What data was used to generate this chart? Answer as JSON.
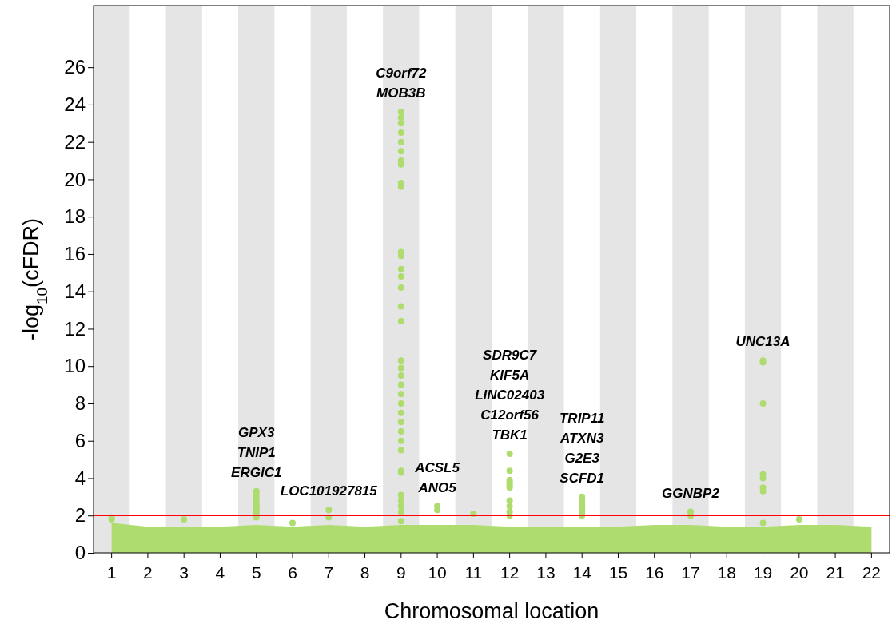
{
  "chart_data": {
    "type": "scatter",
    "xlabel": "Chromosomal location",
    "ylabel": "-log$_{10}$(cFDR)",
    "categories": [
      "1",
      "2",
      "3",
      "4",
      "5",
      "6",
      "7",
      "8",
      "9",
      "10",
      "11",
      "12",
      "13",
      "14",
      "15",
      "16",
      "17",
      "18",
      "19",
      "20",
      "21",
      "22"
    ],
    "ylim": [
      0,
      29.3
    ],
    "yticks": [
      0,
      2,
      4,
      6,
      8,
      10,
      12,
      14,
      16,
      18,
      20,
      22,
      24,
      26
    ],
    "bands": [
      {
        "axis": "x",
        "from": "1",
        "to": "1",
        "color": "#e5e5e5"
      },
      {
        "axis": "x",
        "from": "3",
        "to": "3",
        "color": "#e5e5e5"
      },
      {
        "axis": "x",
        "from": "5",
        "to": "5",
        "color": "#e5e5e5"
      },
      {
        "axis": "x",
        "from": "7",
        "to": "7",
        "color": "#e5e5e5"
      },
      {
        "axis": "x",
        "from": "9",
        "to": "9",
        "color": "#e5e5e5"
      },
      {
        "axis": "x",
        "from": "11",
        "to": "11",
        "color": "#e5e5e5"
      },
      {
        "axis": "x",
        "from": "13",
        "to": "13",
        "color": "#e5e5e5"
      },
      {
        "axis": "x",
        "from": "15",
        "to": "15",
        "color": "#e5e5e5"
      },
      {
        "axis": "x",
        "from": "17",
        "to": "17",
        "color": "#e5e5e5"
      },
      {
        "axis": "x",
        "from": "19",
        "to": "19",
        "color": "#e5e5e5"
      },
      {
        "axis": "x",
        "from": "21",
        "to": "21",
        "color": "#e5e5e5"
      }
    ],
    "ref_lines": [
      {
        "axis": "y",
        "value": 2,
        "color": "#ff0000"
      }
    ],
    "series": [
      {
        "type": "area",
        "color": "#aedc6e",
        "values": [
          1.6,
          1.4,
          1.4,
          1.4,
          1.5,
          1.4,
          1.5,
          1.4,
          1.5,
          1.5,
          1.5,
          1.4,
          1.4,
          1.4,
          1.4,
          1.5,
          1.5,
          1.4,
          1.4,
          1.5,
          1.5,
          1.4
        ]
      },
      {
        "color": "#aedc6e",
        "marker": "circle",
        "x": [
          "1",
          "1",
          "3",
          "5",
          "5",
          "5",
          "5",
          "5",
          "5",
          "5",
          "5",
          "5",
          "5",
          "5",
          "5",
          "6",
          "7",
          "7",
          "9",
          "9",
          "9",
          "9",
          "9",
          "9",
          "9",
          "9",
          "9",
          "9",
          "9",
          "9",
          "9",
          "9",
          "9",
          "9",
          "9",
          "9",
          "9",
          "9",
          "9",
          "9",
          "9",
          "9",
          "9",
          "9",
          "9",
          "9",
          "9",
          "9",
          "9",
          "9",
          "9",
          "9",
          "9",
          "10",
          "10",
          "11",
          "12",
          "12",
          "12",
          "12",
          "12",
          "12",
          "12",
          "12",
          "12",
          "12",
          "12",
          "14",
          "14",
          "14",
          "14",
          "14",
          "14",
          "14",
          "14",
          "14",
          "14",
          "14",
          "17",
          "17",
          "19",
          "19",
          "19",
          "19",
          "19",
          "19",
          "19",
          "19",
          "20"
        ],
        "values": [
          1.8,
          1.9,
          1.8,
          3.3,
          3.2,
          3.0,
          2.8,
          2.6,
          2.4,
          2.2,
          2.0,
          2.5,
          2.3,
          2.1,
          1.9,
          1.6,
          2.3,
          1.9,
          23.6,
          23.3,
          23.0,
          22.5,
          22.0,
          21.5,
          21.0,
          20.8,
          19.8,
          19.6,
          16.1,
          15.9,
          15.2,
          14.8,
          14.2,
          13.2,
          12.4,
          10.3,
          9.9,
          9.5,
          9.0,
          8.5,
          8.0,
          7.5,
          7.0,
          6.5,
          6.0,
          5.5,
          4.4,
          4.3,
          3.1,
          2.8,
          2.5,
          2.2,
          1.7,
          2.5,
          2.3,
          2.1,
          5.3,
          4.4,
          3.9,
          3.8,
          3.7,
          3.6,
          3.5,
          2.8,
          2.5,
          2.2,
          2.0,
          3.0,
          2.9,
          2.8,
          2.6,
          2.4,
          2.2,
          2.0,
          2.7,
          2.5,
          2.3,
          2.1,
          2.2,
          2.0,
          10.3,
          10.2,
          8.0,
          4.2,
          4.0,
          3.5,
          3.3,
          1.6,
          1.8
        ]
      }
    ],
    "annotations": [
      {
        "text": "C9orf72\nMOB3B",
        "x": "9",
        "y": 23.6
      },
      {
        "text": "GPX3\nTNIP1\nERGIC1",
        "x": "5",
        "y": 3.3
      },
      {
        "text": "LOC101927815",
        "x": "7",
        "y": 2.3
      },
      {
        "text": "ACSL5\nANO5",
        "x": "10",
        "y": 2.5
      },
      {
        "text": "SDR9C7\nKIF5A\nLINC02403\nC12orf56\nTBK1",
        "x": "12",
        "y": 5.3
      },
      {
        "text": "TRIP11\nATXN3\nG2E3\nSCFD1",
        "x": "14",
        "y": 3.0
      },
      {
        "text": "GGNBP2",
        "x": "17",
        "y": 2.2
      },
      {
        "text": "UNC13A",
        "x": "19",
        "y": 10.3
      }
    ]
  }
}
